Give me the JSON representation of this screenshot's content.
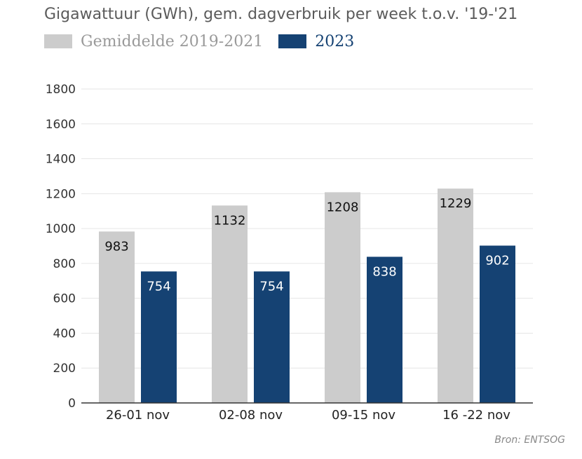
{
  "chart_data": {
    "type": "bar",
    "title": "Gigawattuur (GWh), gem. dagverbruik per week t.o.v. '19-'21",
    "categories": [
      "26-01 nov",
      "02-08 nov",
      "09-15 nov",
      "16 -22 nov"
    ],
    "series": [
      {
        "name": "Gemiddelde 2019-2021",
        "color": "#cccccc",
        "label_color": "#111111",
        "values": [
          983,
          1132,
          1208,
          1229
        ]
      },
      {
        "name": "2023",
        "color": "#154273",
        "label_color": "#ffffff",
        "values": [
          754,
          754,
          838,
          902
        ]
      }
    ],
    "yticks": [
      "0",
      "200",
      "400",
      "600",
      "800",
      "1000",
      "1200",
      "1400",
      "1600",
      "1800"
    ],
    "ylim": [
      0,
      1800
    ],
    "grid": true,
    "legend_position": "top-left",
    "source": "Bron: ENTSOG"
  },
  "colors": {
    "title": "#5b5b5b",
    "grid": "#e6e6e6",
    "axis": "#333333"
  }
}
